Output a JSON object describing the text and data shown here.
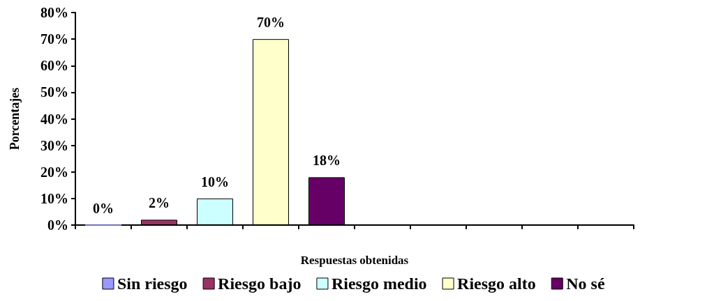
{
  "chart_data": {
    "type": "bar",
    "xlabel": "Respuestas obtenidas",
    "ylabel": "Porcentajes",
    "categories": [
      null,
      null,
      null,
      null,
      null,
      null,
      null,
      null,
      null,
      null
    ],
    "series": [
      {
        "name": "Sin riesgo",
        "color": "#9999ff",
        "values": [
          0,
          null,
          null,
          null,
          null,
          null,
          null,
          null,
          null,
          null
        ],
        "value_labels": [
          "0%",
          null,
          null,
          null,
          null,
          null,
          null,
          null,
          null,
          null
        ]
      },
      {
        "name": "Riesgo bajo",
        "color": "#993366",
        "values": [
          null,
          2,
          null,
          null,
          null,
          null,
          null,
          null,
          null,
          null
        ],
        "value_labels": [
          null,
          "2%",
          null,
          null,
          null,
          null,
          null,
          null,
          null,
          null
        ]
      },
      {
        "name": "Riesgo medio",
        "color": "#ccffff",
        "values": [
          null,
          null,
          10,
          null,
          null,
          null,
          null,
          null,
          null,
          null
        ],
        "value_labels": [
          null,
          null,
          "10%",
          null,
          null,
          null,
          null,
          null,
          null,
          null
        ]
      },
      {
        "name": "Riesgo alto",
        "color": "#ffffcc",
        "values": [
          null,
          null,
          null,
          70,
          null,
          null,
          null,
          null,
          null,
          null
        ],
        "value_labels": [
          null,
          null,
          null,
          "70%",
          null,
          null,
          null,
          null,
          null,
          null
        ]
      },
      {
        "name": "No sé",
        "color": "#660066",
        "values": [
          null,
          null,
          null,
          null,
          18,
          null,
          null,
          null,
          null,
          null
        ],
        "value_labels": [
          null,
          null,
          null,
          null,
          "18%",
          null,
          null,
          null,
          null,
          null
        ]
      }
    ],
    "ylim": [
      0,
      80
    ],
    "yticks": [
      {
        "value": 0,
        "label": "0%"
      },
      {
        "value": 10,
        "label": "10%"
      },
      {
        "value": 20,
        "label": "20%"
      },
      {
        "value": 30,
        "label": "30%"
      },
      {
        "value": 40,
        "label": "40%"
      },
      {
        "value": 50,
        "label": "50%"
      },
      {
        "value": 60,
        "label": "60%"
      },
      {
        "value": 70,
        "label": "70%"
      },
      {
        "value": 80,
        "label": "80%"
      }
    ],
    "grid": false,
    "legend": "bottom"
  }
}
